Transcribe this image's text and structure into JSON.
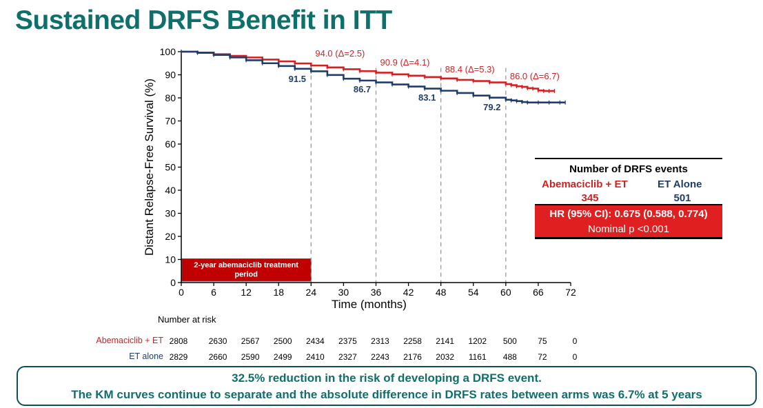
{
  "title": "Sustained DRFS Benefit in ITT",
  "colors": {
    "abema": "#d42020",
    "et": "#1f3d6b",
    "title": "#0f6f6b",
    "box_fill": "#c00000"
  },
  "chart_data": {
    "type": "line",
    "xlabel": "Time (months)",
    "ylabel": "Distant Relapse-Free Survival (%)",
    "xlim": [
      0,
      72
    ],
    "ylim": [
      0,
      100
    ],
    "xticks": [
      0,
      6,
      12,
      18,
      24,
      30,
      36,
      42,
      48,
      54,
      60,
      66,
      72
    ],
    "yticks": [
      0,
      10,
      20,
      30,
      40,
      50,
      60,
      70,
      80,
      90,
      100
    ],
    "grid": false,
    "series": [
      {
        "name": "Abemaciclib + ET",
        "color": "#d42020",
        "x": [
          0,
          3,
          6,
          9,
          12,
          15,
          18,
          21,
          24,
          27,
          30,
          33,
          36,
          39,
          42,
          45,
          48,
          51,
          54,
          57,
          60,
          61,
          62,
          63,
          64,
          65,
          66,
          67,
          68,
          69
        ],
        "y": [
          100,
          99.6,
          98.9,
          98.2,
          97.5,
          96.6,
          95.8,
          94.9,
          94.0,
          93.2,
          92.4,
          91.6,
          90.9,
          90.2,
          89.6,
          89.0,
          88.4,
          87.8,
          87.3,
          86.7,
          86.0,
          85.5,
          85.0,
          84.8,
          84.2,
          84.0,
          83.2,
          83.0,
          83.0,
          83.0
        ]
      },
      {
        "name": "ET Alone",
        "color": "#1f3d6b",
        "x": [
          0,
          3,
          6,
          9,
          12,
          15,
          18,
          21,
          24,
          27,
          30,
          33,
          36,
          39,
          42,
          45,
          48,
          51,
          54,
          57,
          60,
          61,
          62,
          63,
          64,
          66,
          68,
          70,
          71
        ],
        "y": [
          100,
          99.5,
          98.6,
          97.5,
          96.3,
          95.0,
          93.8,
          92.6,
          91.5,
          89.9,
          88.3,
          87.5,
          86.7,
          85.8,
          84.9,
          84.0,
          83.1,
          82.1,
          81.0,
          80.1,
          79.2,
          78.9,
          78.6,
          78.2,
          78.0,
          78.0,
          78.0,
          78.0,
          78.0
        ]
      }
    ],
    "annotations_abema": [
      {
        "x": 24,
        "label": "94.0 (Δ=2.5)"
      },
      {
        "x": 36,
        "label": "90.9 (Δ=4.1)"
      },
      {
        "x": 48,
        "label": "88.4 (Δ=5.3)"
      },
      {
        "x": 60,
        "label": "86.0 (Δ=6.7)"
      }
    ],
    "annotations_et": [
      {
        "x": 24,
        "label": "91.5"
      },
      {
        "x": 36,
        "label": "86.7"
      },
      {
        "x": 48,
        "label": "83.1"
      },
      {
        "x": 60,
        "label": "79.2"
      }
    ],
    "vlines": [
      24,
      36,
      48,
      60
    ],
    "period_box_label_1": "2-year abemaciclib treatment",
    "period_box_label_2": "period"
  },
  "events": {
    "title": "Number of DRFS events",
    "abema_label": "Abemaciclib + ET",
    "abema_count": "345",
    "et_label": "ET Alone",
    "et_count": "501",
    "hr_line": "HR (95% CI): 0.675 (0.588, 0.774)",
    "p_line": "Nominal p <0.001"
  },
  "risk": {
    "header": "Number at risk",
    "abema_label": "Abemaciclib + ET",
    "abema_values": [
      "2808",
      "2630",
      "2567",
      "2500",
      "2434",
      "2375",
      "2313",
      "2258",
      "2141",
      "1202",
      "500",
      "75",
      "0"
    ],
    "et_label": "ET alone",
    "et_values": [
      "2829",
      "2660",
      "2590",
      "2499",
      "2410",
      "2327",
      "2243",
      "2176",
      "2032",
      "1161",
      "488",
      "72",
      "0"
    ]
  },
  "summary": {
    "line1": "32.5% reduction in the risk of developing a DRFS event.",
    "line2": "The KM curves continue to separate and the absolute difference in DRFS rates between arms was 6.7% at 5 years"
  }
}
